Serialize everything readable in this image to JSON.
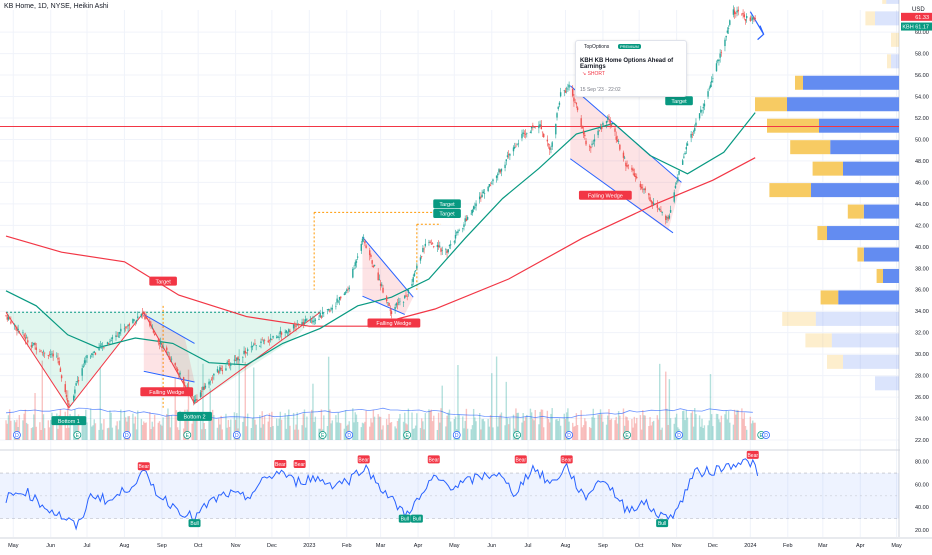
{
  "header": {
    "title": "KB Home, 1D, NYSE, Heikin Ashi"
  },
  "idea_card": {
    "source": "TopOptions",
    "badge": "PREMIUM",
    "title": "KBH KB Home Options Ahead of Earnings",
    "side": "↘ SHORT",
    "timestamp": "15 Sep '23 · 22:02"
  },
  "colors": {
    "up": "#26a69a",
    "down": "#ef5350",
    "ma_fast": "#089981",
    "ma_slow": "#f23645",
    "rsi": "#2962ff",
    "vp_up": "#f7c85b",
    "vp_down": "#5b86f0"
  },
  "chart_data": [
    {
      "type": "candlestick",
      "style": "Heikin Ashi",
      "symbol": "KBH",
      "title": "KB Home, 1D, NYSE, Heikin Ashi",
      "currency": "USD",
      "x_ticks": [
        "May",
        "Jun",
        "Jul",
        "Aug",
        "Sep",
        "Oct",
        "Nov",
        "Dec",
        "2023",
        "Feb",
        "Mar",
        "Apr",
        "May",
        "Jun",
        "Jul",
        "Aug",
        "Sep",
        "Oct",
        "Nov",
        "Dec",
        "2024",
        "Feb",
        "Mar",
        "Apr",
        "May"
      ],
      "y_ticks": [
        22,
        24,
        26,
        28,
        30,
        32,
        34,
        36,
        38,
        40,
        42,
        44,
        46,
        48,
        50,
        52,
        54,
        56,
        58,
        60
      ],
      "ylim": [
        21.4,
        62.0
      ],
      "price_labels": [
        {
          "symbol": "",
          "value": "61.33",
          "color": "#f23645"
        },
        {
          "symbol": "KBH",
          "value": "61.17",
          "color": "#089981"
        }
      ],
      "close_path": [
        {
          "x": "2022-04-25",
          "y": 33.6
        },
        {
          "x": "2022-05-15",
          "y": 31.0
        },
        {
          "x": "2022-06-07",
          "y": 29.5
        },
        {
          "x": "2022-06-16",
          "y": 25.1
        },
        {
          "x": "2022-06-30",
          "y": 29.6
        },
        {
          "x": "2022-07-15",
          "y": 30.8
        },
        {
          "x": "2022-08-01",
          "y": 32.5
        },
        {
          "x": "2022-08-16",
          "y": 33.7
        },
        {
          "x": "2022-09-10",
          "y": 29.2
        },
        {
          "x": "2022-09-28",
          "y": 25.6
        },
        {
          "x": "2022-10-15",
          "y": 28.2
        },
        {
          "x": "2022-11-15",
          "y": 30.6
        },
        {
          "x": "2022-12-15",
          "y": 32.3
        },
        {
          "x": "2023-01-15",
          "y": 33.8
        },
        {
          "x": "2023-02-02",
          "y": 36.0
        },
        {
          "x": "2023-02-14",
          "y": 40.9
        },
        {
          "x": "2023-03-10",
          "y": 34.0
        },
        {
          "x": "2023-03-23",
          "y": 35.5
        },
        {
          "x": "2023-04-07",
          "y": 40.3
        },
        {
          "x": "2023-04-25",
          "y": 39.6
        },
        {
          "x": "2023-05-20",
          "y": 44.2
        },
        {
          "x": "2023-06-10",
          "y": 47.5
        },
        {
          "x": "2023-06-25",
          "y": 50.2
        },
        {
          "x": "2023-07-10",
          "y": 51.5
        },
        {
          "x": "2023-07-20",
          "y": 49.0
        },
        {
          "x": "2023-07-28",
          "y": 54.3
        },
        {
          "x": "2023-08-05",
          "y": 55.0
        },
        {
          "x": "2023-08-20",
          "y": 49.0
        },
        {
          "x": "2023-09-05",
          "y": 52.2
        },
        {
          "x": "2023-09-20",
          "y": 47.8
        },
        {
          "x": "2023-10-10",
          "y": 44.5
        },
        {
          "x": "2023-10-25",
          "y": 42.3
        },
        {
          "x": "2023-11-05",
          "y": 48.0
        },
        {
          "x": "2023-11-20",
          "y": 52.3
        },
        {
          "x": "2023-12-05",
          "y": 57.2
        },
        {
          "x": "2023-12-18",
          "y": 62.0
        },
        {
          "x": "2023-12-28",
          "y": 61.3
        },
        {
          "x": "2024-01-05",
          "y": 61.2
        }
      ],
      "moving_average_fast": [
        {
          "x": "2022-04-25",
          "y": 35.9
        },
        {
          "x": "2022-05-20",
          "y": 34.5
        },
        {
          "x": "2022-06-15",
          "y": 31.8
        },
        {
          "x": "2022-07-10",
          "y": 30.6
        },
        {
          "x": "2022-08-10",
          "y": 31.5
        },
        {
          "x": "2022-09-10",
          "y": 31.0
        },
        {
          "x": "2022-10-10",
          "y": 29.2
        },
        {
          "x": "2022-11-10",
          "y": 29.0
        },
        {
          "x": "2022-12-10",
          "y": 31.0
        },
        {
          "x": "2023-01-10",
          "y": 32.4
        },
        {
          "x": "2023-02-10",
          "y": 34.5
        },
        {
          "x": "2023-03-10",
          "y": 35.3
        },
        {
          "x": "2023-04-10",
          "y": 37.0
        },
        {
          "x": "2023-05-10",
          "y": 40.8
        },
        {
          "x": "2023-06-10",
          "y": 44.5
        },
        {
          "x": "2023-07-10",
          "y": 47.3
        },
        {
          "x": "2023-08-10",
          "y": 50.5
        },
        {
          "x": "2023-09-10",
          "y": 51.5
        },
        {
          "x": "2023-10-10",
          "y": 48.5
        },
        {
          "x": "2023-11-10",
          "y": 46.8
        },
        {
          "x": "2023-12-10",
          "y": 48.8
        },
        {
          "x": "2024-01-05",
          "y": 52.5
        }
      ],
      "moving_average_slow": [
        {
          "x": "2022-04-25",
          "y": 41.0
        },
        {
          "x": "2022-06-10",
          "y": 39.5
        },
        {
          "x": "2022-08-01",
          "y": 38.6
        },
        {
          "x": "2022-09-15",
          "y": 35.5
        },
        {
          "x": "2022-11-10",
          "y": 33.5
        },
        {
          "x": "2023-01-01",
          "y": 32.6
        },
        {
          "x": "2023-02-20",
          "y": 32.6
        },
        {
          "x": "2023-04-15",
          "y": 34.2
        },
        {
          "x": "2023-06-15",
          "y": 37.0
        },
        {
          "x": "2023-08-15",
          "y": 40.8
        },
        {
          "x": "2023-10-15",
          "y": 44.0
        },
        {
          "x": "2023-12-01",
          "y": 46.2
        },
        {
          "x": "2024-01-05",
          "y": 48.3
        }
      ],
      "horizontal_levels": [
        51.2
      ],
      "annotations": [
        {
          "text": "Bottom 1",
          "kind": "green",
          "x": "2022-06-16",
          "y": 23.8
        },
        {
          "text": "Bottom 2",
          "kind": "green",
          "x": "2022-09-28",
          "y": 24.2
        },
        {
          "text": "Target",
          "kind": "red",
          "x": "2022-09-02",
          "y": 36.8
        },
        {
          "text": "Falling Wedge",
          "kind": "red",
          "x": "2022-09-05",
          "y": 26.5
        },
        {
          "text": "Falling Wedge",
          "kind": "red",
          "x": "2023-03-12",
          "y": 32.9
        },
        {
          "text": "Target",
          "kind": "green",
          "x": "2023-04-25",
          "y": 44.0
        },
        {
          "text": "Target",
          "kind": "green",
          "x": "2023-04-25",
          "y": 43.1
        },
        {
          "text": "Falling Wedge",
          "kind": "red",
          "x": "2023-09-03",
          "y": 44.8
        },
        {
          "text": "Target",
          "kind": "green",
          "x": "2023-11-03",
          "y": 53.6
        }
      ],
      "events": [
        {
          "x": "2022-05-04",
          "letter": "D"
        },
        {
          "x": "2022-06-23",
          "letter": "E"
        },
        {
          "x": "2022-08-03",
          "letter": "D"
        },
        {
          "x": "2022-09-22",
          "letter": "E"
        },
        {
          "x": "2022-11-02",
          "letter": "D"
        },
        {
          "x": "2023-01-12",
          "letter": "E"
        },
        {
          "x": "2023-02-03",
          "letter": "D"
        },
        {
          "x": "2023-03-23",
          "letter": "E"
        },
        {
          "x": "2023-05-03",
          "letter": "D"
        },
        {
          "x": "2023-06-22",
          "letter": "E"
        },
        {
          "x": "2023-08-04",
          "letter": "D"
        },
        {
          "x": "2023-09-21",
          "letter": "E"
        },
        {
          "x": "2023-11-03",
          "letter": "D"
        },
        {
          "x": "2024-01-10",
          "letter": "E"
        },
        {
          "x": "2024-01-14",
          "letter": "D"
        }
      ],
      "volume_profile": [
        {
          "price": 27.0,
          "up": 0,
          "down": 0.15,
          "faded": true
        },
        {
          "price": 29.0,
          "up": 0.2,
          "down": 0.35,
          "faded": true
        },
        {
          "price": 31.0,
          "up": 0.33,
          "down": 0.42,
          "faded": true
        },
        {
          "price": 33.0,
          "up": 0.42,
          "down": 0.52,
          "faded": true
        },
        {
          "price": 35.0,
          "up": 0.22,
          "down": 0.38,
          "faded": false
        },
        {
          "price": 37.0,
          "up": 0.08,
          "down": 0.1,
          "faded": false
        },
        {
          "price": 39.0,
          "up": 0.08,
          "down": 0.22,
          "faded": false
        },
        {
          "price": 41.0,
          "up": 0.12,
          "down": 0.45,
          "faded": false
        },
        {
          "price": 43.0,
          "up": 0.2,
          "down": 0.22,
          "faded": false
        },
        {
          "price": 45.0,
          "up": 0.52,
          "down": 0.55,
          "faded": false
        },
        {
          "price": 47.0,
          "up": 0.38,
          "down": 0.35,
          "faded": false
        },
        {
          "price": 49.0,
          "up": 0.5,
          "down": 0.43,
          "faded": false
        },
        {
          "price": 51.0,
          "up": 0.65,
          "down": 0.5,
          "faded": false
        },
        {
          "price": 53.0,
          "up": 0.4,
          "down": 0.7,
          "faded": false
        },
        {
          "price": 55.0,
          "up": 0.1,
          "down": 0.6,
          "faded": false
        },
        {
          "price": 57.0,
          "up": 0.05,
          "down": 0.05,
          "faded": true
        },
        {
          "price": 59.0,
          "up": 0.1,
          "down": 0.0,
          "faded": true
        },
        {
          "price": 61.0,
          "up": 0.12,
          "down": 0.15,
          "faded": true
        },
        {
          "price": 63.0,
          "up": 0.05,
          "down": 0.08,
          "faded": true
        }
      ]
    },
    {
      "type": "line",
      "title": "RSI",
      "y_ticks": [
        20.0,
        40.0,
        60.0,
        80.0
      ],
      "ylim": [
        15,
        90
      ],
      "band": [
        30,
        70
      ],
      "values": [
        {
          "x": "2022-04-25",
          "y": 48
        },
        {
          "x": "2022-05-10",
          "y": 55
        },
        {
          "x": "2022-05-25",
          "y": 42
        },
        {
          "x": "2022-06-16",
          "y": 28
        },
        {
          "x": "2022-06-23",
          "y": 22
        },
        {
          "x": "2022-07-05",
          "y": 52
        },
        {
          "x": "2022-07-20",
          "y": 45
        },
        {
          "x": "2022-08-05",
          "y": 58
        },
        {
          "x": "2022-08-17",
          "y": 70
        },
        {
          "x": "2022-08-30",
          "y": 50
        },
        {
          "x": "2022-09-15",
          "y": 38
        },
        {
          "x": "2022-09-28",
          "y": 30
        },
        {
          "x": "2022-10-10",
          "y": 44
        },
        {
          "x": "2022-10-25",
          "y": 52
        },
        {
          "x": "2022-11-10",
          "y": 48
        },
        {
          "x": "2022-11-25",
          "y": 64
        },
        {
          "x": "2022-12-08",
          "y": 72
        },
        {
          "x": "2022-12-20",
          "y": 62
        },
        {
          "x": "2023-01-05",
          "y": 66
        },
        {
          "x": "2023-01-20",
          "y": 60
        },
        {
          "x": "2023-02-03",
          "y": 64
        },
        {
          "x": "2023-02-15",
          "y": 76
        },
        {
          "x": "2023-03-01",
          "y": 58
        },
        {
          "x": "2023-03-14",
          "y": 42
        },
        {
          "x": "2023-03-21",
          "y": 34
        },
        {
          "x": "2023-04-03",
          "y": 48
        },
        {
          "x": "2023-04-14",
          "y": 66
        },
        {
          "x": "2023-05-01",
          "y": 58
        },
        {
          "x": "2023-05-20",
          "y": 66
        },
        {
          "x": "2023-06-05",
          "y": 70
        },
        {
          "x": "2023-06-20",
          "y": 52
        },
        {
          "x": "2023-07-05",
          "y": 75
        },
        {
          "x": "2023-07-20",
          "y": 60
        },
        {
          "x": "2023-08-02",
          "y": 76
        },
        {
          "x": "2023-08-16",
          "y": 48
        },
        {
          "x": "2023-09-01",
          "y": 66
        },
        {
          "x": "2023-09-20",
          "y": 38
        },
        {
          "x": "2023-10-05",
          "y": 44
        },
        {
          "x": "2023-10-20",
          "y": 31
        },
        {
          "x": "2023-11-01",
          "y": 36
        },
        {
          "x": "2023-11-15",
          "y": 70
        },
        {
          "x": "2023-12-01",
          "y": 72
        },
        {
          "x": "2023-12-12",
          "y": 76
        },
        {
          "x": "2023-12-22",
          "y": 80
        },
        {
          "x": "2024-01-03",
          "y": 79
        },
        {
          "x": "2024-01-08",
          "y": 64
        }
      ],
      "signals": [
        {
          "text": "Bear",
          "x": "2022-08-17",
          "y": 76
        },
        {
          "text": "Bull",
          "x": "2022-09-28",
          "y": 26
        },
        {
          "text": "Bear",
          "x": "2022-12-08",
          "y": 78
        },
        {
          "text": "Bear",
          "x": "2022-12-24",
          "y": 78
        },
        {
          "text": "Bear",
          "x": "2023-02-15",
          "y": 82
        },
        {
          "text": "Bull",
          "x": "2023-03-21",
          "y": 30
        },
        {
          "text": "Bull",
          "x": "2023-03-31",
          "y": 30
        },
        {
          "text": "Bear",
          "x": "2023-04-14",
          "y": 82
        },
        {
          "text": "Bear",
          "x": "2023-06-25",
          "y": 82
        },
        {
          "text": "Bear",
          "x": "2023-08-02",
          "y": 82
        },
        {
          "text": "Bull",
          "x": "2023-10-20",
          "y": 26
        },
        {
          "text": "Bear",
          "x": "2024-01-03",
          "y": 86
        }
      ]
    }
  ]
}
